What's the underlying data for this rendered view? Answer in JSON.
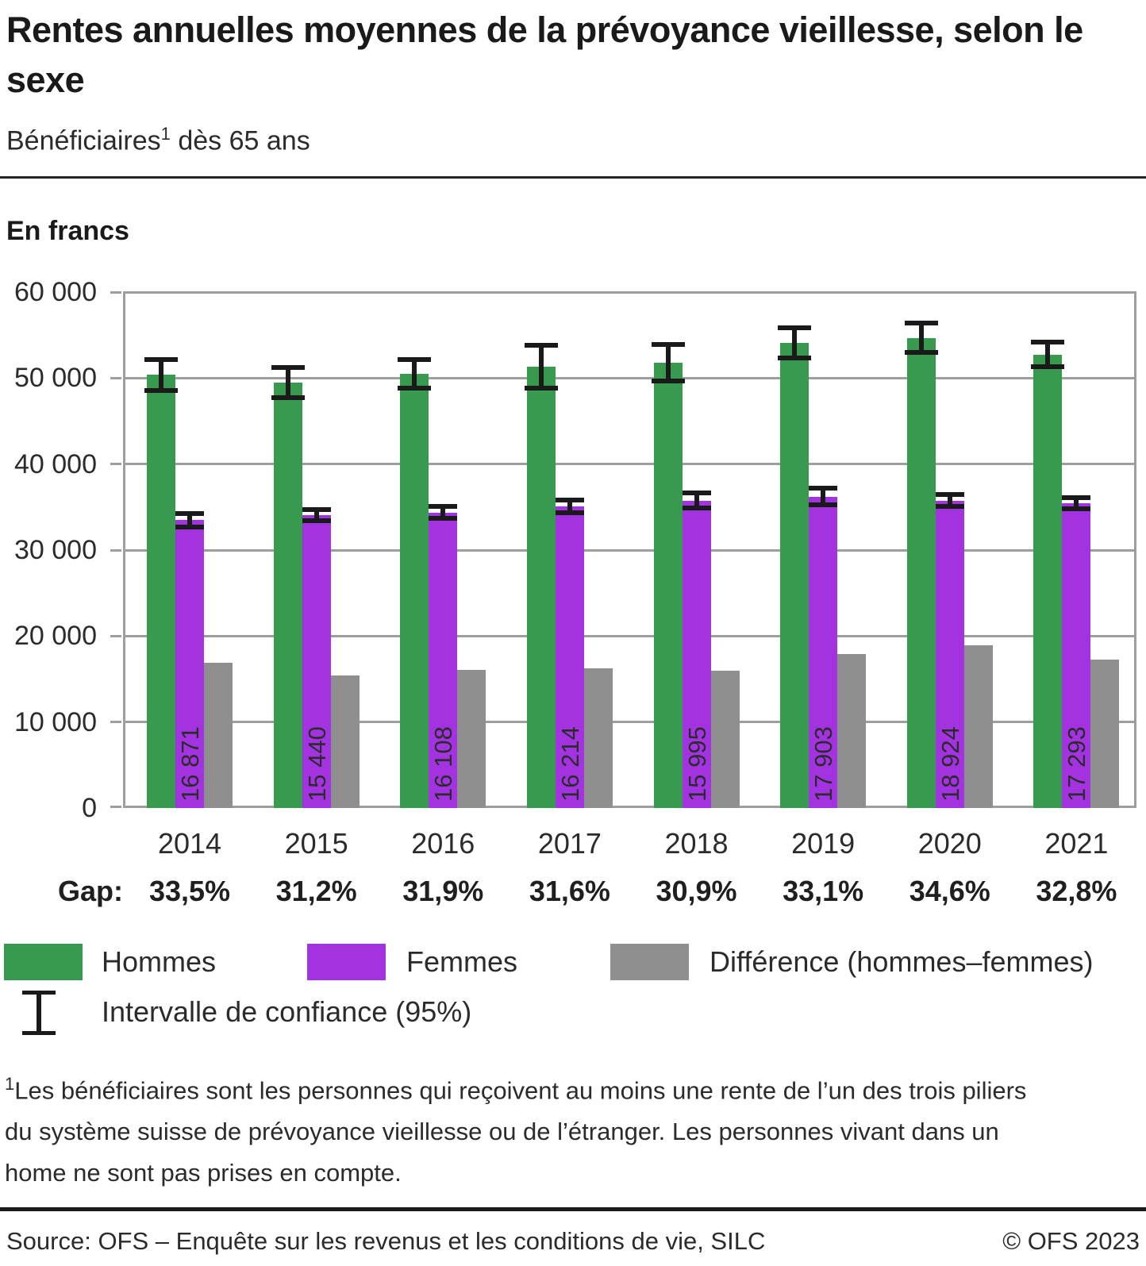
{
  "header": {
    "title": "Rentes annuelles moyennes de la prévoyance vieillesse, selon le sexe",
    "subtitle_prefix": "Bénéficiaires",
    "subtitle_sup": "1",
    "subtitle_suffix": " dès 65 ans"
  },
  "chart_data": {
    "type": "bar",
    "unit_label": "En francs",
    "categories": [
      "2014",
      "2015",
      "2016",
      "2017",
      "2018",
      "2019",
      "2020",
      "2021"
    ],
    "series": [
      {
        "name": "Hommes",
        "color": "#379a4f",
        "values": [
          50360,
          49490,
          50490,
          51310,
          51760,
          54090,
          54690,
          52720
        ],
        "ci95_halfwidth": [
          2050,
          2000,
          1900,
          2800,
          2400,
          2000,
          1950,
          1700
        ]
      },
      {
        "name": "Femmes",
        "color": "#a333e0",
        "values": [
          33490,
          34050,
          34380,
          35100,
          35770,
          36190,
          35770,
          35430
        ],
        "ci95_halfwidth": [
          1050,
          950,
          1000,
          1000,
          1180,
          1250,
          1000,
          950
        ]
      },
      {
        "name": "Différence (hommes–femmes)",
        "color": "#8f8f8f",
        "values": [
          16871,
          15440,
          16108,
          16214,
          15995,
          17903,
          18924,
          17293
        ],
        "value_labels": [
          "16 871",
          "15 440",
          "16 108",
          "16 214",
          "15 995",
          "17 903",
          "18 924",
          "17 293"
        ]
      }
    ],
    "gap_label": "Gap:",
    "gap_values": [
      "33,5%",
      "31,2%",
      "31,9%",
      "31,6%",
      "30,9%",
      "33,1%",
      "34,6%",
      "32,8%"
    ],
    "ylim": [
      0,
      60000
    ],
    "ytick_step": 10000,
    "ytick_labels": [
      "0",
      "10 000",
      "20 000",
      "30 000",
      "40 000",
      "50 000",
      "60 000"
    ],
    "grid": true,
    "legend_position": "bottom",
    "ci_legend_label": "Intervalle de confiance (95%)"
  },
  "footnote": {
    "mark": "1",
    "text": "Les bénéficiaires sont les personnes qui reçoivent au moins une rente de l’un des trois piliers du système suisse de prévoyance vieillesse ou de l’étranger. Les personnes vivant dans un home ne sont pas prises en compte."
  },
  "footer": {
    "source": "Source: OFS – Enquête sur les revenus et les conditions de vie, SILC",
    "copyright": "© OFS 2023"
  },
  "colors": {
    "hommes": "#379a4f",
    "femmes": "#a333e0",
    "difference": "#8f8f8f",
    "grid": "#9e9e9e",
    "errorbar": "#1a1a1a"
  }
}
